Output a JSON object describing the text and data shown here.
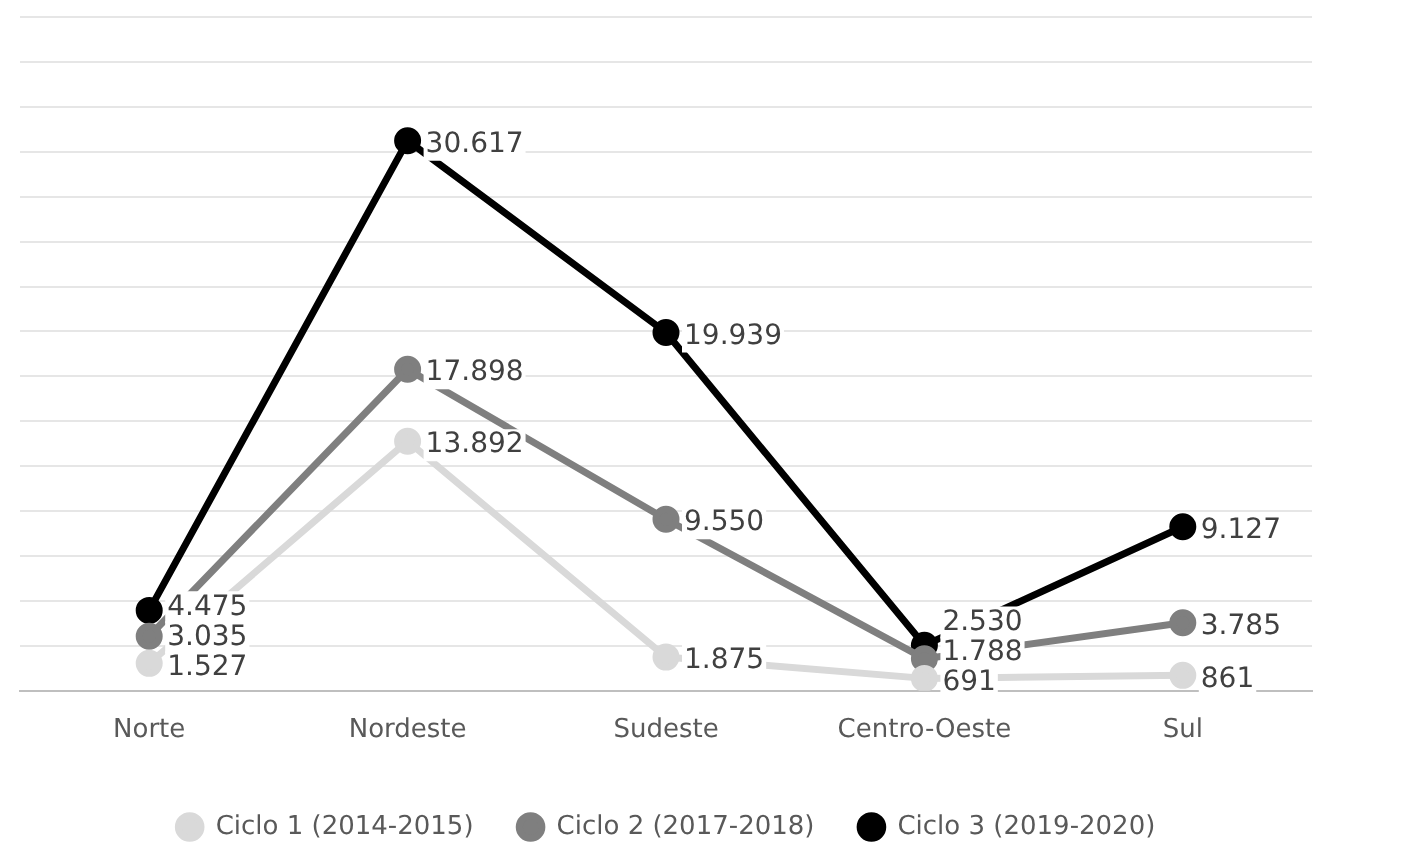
{
  "chart_data": {
    "type": "line",
    "categories": [
      "Norte",
      "Nordeste",
      "Sudeste",
      "Centro-Oeste",
      "Sul"
    ],
    "series": [
      {
        "name": "Ciclo 1 (2014-2015)",
        "color": "#d9d9d9",
        "values": [
          1527,
          13892,
          1875,
          691,
          861
        ],
        "value_labels": [
          "1.527",
          "13.892",
          "1.875",
          "691",
          "861"
        ]
      },
      {
        "name": "Ciclo 2 (2017-2018)",
        "color": "#7f7f7f",
        "values": [
          3035,
          17898,
          9550,
          1788,
          3785
        ],
        "value_labels": [
          "3.035",
          "17.898",
          "9.550",
          "1.788",
          "3.785"
        ]
      },
      {
        "name": "Ciclo 3 (2019-2020)",
        "color": "#000000",
        "values": [
          4475,
          30617,
          19939,
          2530,
          9127
        ],
        "value_labels": [
          "4.475",
          "30.617",
          "19.939",
          "2.530",
          "9.127"
        ]
      }
    ],
    "ylim": [
      0,
      37500
    ],
    "yticks": [
      {
        "value": 0,
        "label": null
      },
      {
        "value": 2500,
        "label": null
      },
      {
        "value": 5000,
        "label": null
      },
      {
        "value": 7500,
        "label": null
      },
      {
        "value": 10000,
        "label": null
      },
      {
        "value": 12500,
        "label": null
      },
      {
        "value": 15000,
        "label": null
      },
      {
        "value": 17500,
        "label": null
      },
      {
        "value": 20000,
        "label": null
      },
      {
        "value": 22500,
        "label": null
      },
      {
        "value": 25000,
        "label": null
      },
      {
        "value": 27500,
        "label": null
      },
      {
        "value": 30000,
        "label": null
      },
      {
        "value": 32500,
        "label": null
      },
      {
        "value": 35000,
        "label": null
      },
      {
        "value": 37500,
        "label": null
      }
    ],
    "tick_labels": "x",
    "grid": "y",
    "legend": "bottom",
    "marker": "circle",
    "line_style": "solid"
  }
}
